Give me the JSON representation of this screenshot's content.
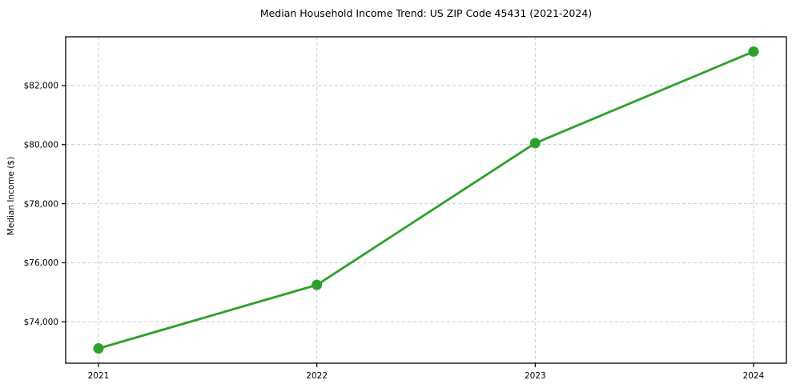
{
  "chart_data": {
    "type": "line",
    "title": "Median Household Income Trend: US ZIP Code 45431 (2021-2024)",
    "xlabel": "",
    "ylabel": "Median Income ($)",
    "x": [
      "2021",
      "2022",
      "2023",
      "2024"
    ],
    "series": [
      {
        "name": "Median Household Income",
        "values": [
          73100,
          75250,
          80050,
          83150
        ]
      }
    ],
    "ylim": [
      72600,
      83650
    ],
    "yticks": [
      74000,
      76000,
      78000,
      80000,
      82000
    ],
    "ytick_labels": [
      "$74,000",
      "$76,000",
      "$78,000",
      "$80,000",
      "$82,000"
    ],
    "xtick_labels": [
      "2021",
      "2022",
      "2023",
      "2024"
    ],
    "grid": true,
    "grid_style": "dashed",
    "legend": "none",
    "marker": "circle",
    "colors": {
      "line": "#2ca02c",
      "marker": "#2ca02c",
      "grid": "#cccccc",
      "axis": "#000000",
      "text": "#000000",
      "background": "#ffffff"
    }
  }
}
